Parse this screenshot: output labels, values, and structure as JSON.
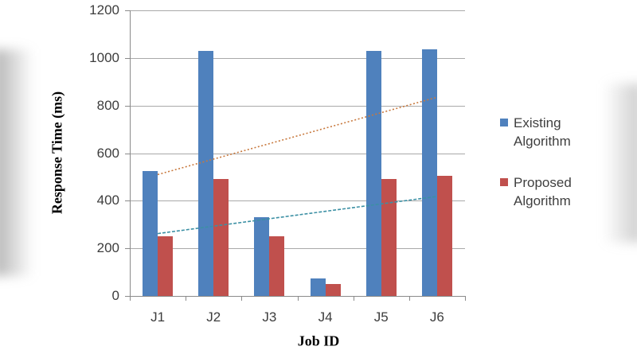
{
  "chart_data": {
    "type": "bar",
    "title": "",
    "categories": [
      "J1",
      "J2",
      "J3",
      "J4",
      "J5",
      "J6"
    ],
    "series": [
      {
        "name": "Existing Algorithm",
        "color": "#4F81BD",
        "values": [
          525,
          1030,
          330,
          75,
          1030,
          1035
        ]
      },
      {
        "name": "Proposed Algorithm",
        "color": "#C0504D",
        "values": [
          250,
          490,
          250,
          50,
          490,
          505
        ]
      }
    ],
    "trendlines": [
      {
        "for": "Existing Algorithm",
        "color": "#C8793E",
        "dash": "2,2.5",
        "start": 510,
        "end": 835
      },
      {
        "for": "Proposed Algorithm",
        "color": "#3C90A4",
        "dash": "4,2",
        "start": 262,
        "end": 418
      }
    ],
    "xlabel": "Job ID",
    "ylabel": "Response Time (ms)",
    "ylim": [
      0,
      1200
    ],
    "ytick_interval": 200,
    "yticks": [
      "0",
      "200",
      "400",
      "600",
      "800",
      "1000",
      "1200"
    ],
    "grid": true,
    "legend_position": "right"
  },
  "legend": {
    "items": [
      {
        "label": "Existing Algorithm",
        "color": "#4F81BD"
      },
      {
        "label": "Proposed Algorithm",
        "color": "#C0504D"
      }
    ]
  },
  "colors": {
    "axis": "#8a8a8a",
    "gridline": "#a9a9a9",
    "tick_text": "#3d3d3d",
    "background": "#ffffff"
  }
}
